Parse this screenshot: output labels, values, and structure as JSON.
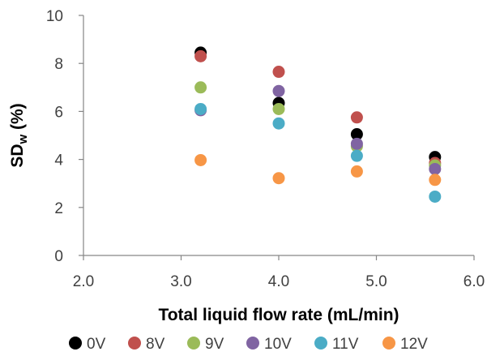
{
  "chart_data": {
    "type": "scatter",
    "title": "",
    "xlabel": "Total liquid flow rate (mL/min)",
    "ylabel_main": "SD",
    "ylabel_sub": "w",
    "ylabel_suffix": " (%)",
    "xlim": [
      2.0,
      6.0
    ],
    "ylim": [
      0,
      10
    ],
    "x_ticks": [
      2.0,
      3.0,
      4.0,
      5.0,
      6.0
    ],
    "x_tick_labels": [
      "2.0",
      "3.0",
      "4.0",
      "5.0",
      "6.0"
    ],
    "y_ticks": [
      0,
      2,
      4,
      6,
      8,
      10
    ],
    "y_tick_labels": [
      "0",
      "2",
      "4",
      "6",
      "8",
      "10"
    ],
    "grid": false,
    "legend_position": "bottom",
    "series": [
      {
        "name": "0V",
        "color": "#000000",
        "x": [
          3.2,
          4.0,
          4.8,
          5.6
        ],
        "y": [
          8.45,
          6.35,
          5.05,
          4.1
        ]
      },
      {
        "name": "8V",
        "color": "#c0504d",
        "x": [
          3.2,
          4.0,
          4.8,
          5.6
        ],
        "y": [
          8.3,
          7.65,
          5.75,
          3.85
        ]
      },
      {
        "name": "9V",
        "color": "#9bbb59",
        "x": [
          3.2,
          4.0,
          4.8,
          5.6
        ],
        "y": [
          7.0,
          6.1,
          4.55,
          3.75
        ]
      },
      {
        "name": "10V",
        "color": "#8064a2",
        "x": [
          3.2,
          4.0,
          4.8,
          5.6
        ],
        "y": [
          6.05,
          6.85,
          4.65,
          3.6
        ]
      },
      {
        "name": "11V",
        "color": "#4bacc6",
        "x": [
          3.2,
          4.0,
          4.8,
          5.6
        ],
        "y": [
          6.1,
          5.5,
          4.15,
          2.45
        ]
      },
      {
        "name": "12V",
        "color": "#f79646",
        "x": [
          3.2,
          4.0,
          4.8,
          5.6
        ],
        "y": [
          3.97,
          3.22,
          3.5,
          3.15
        ]
      }
    ]
  }
}
